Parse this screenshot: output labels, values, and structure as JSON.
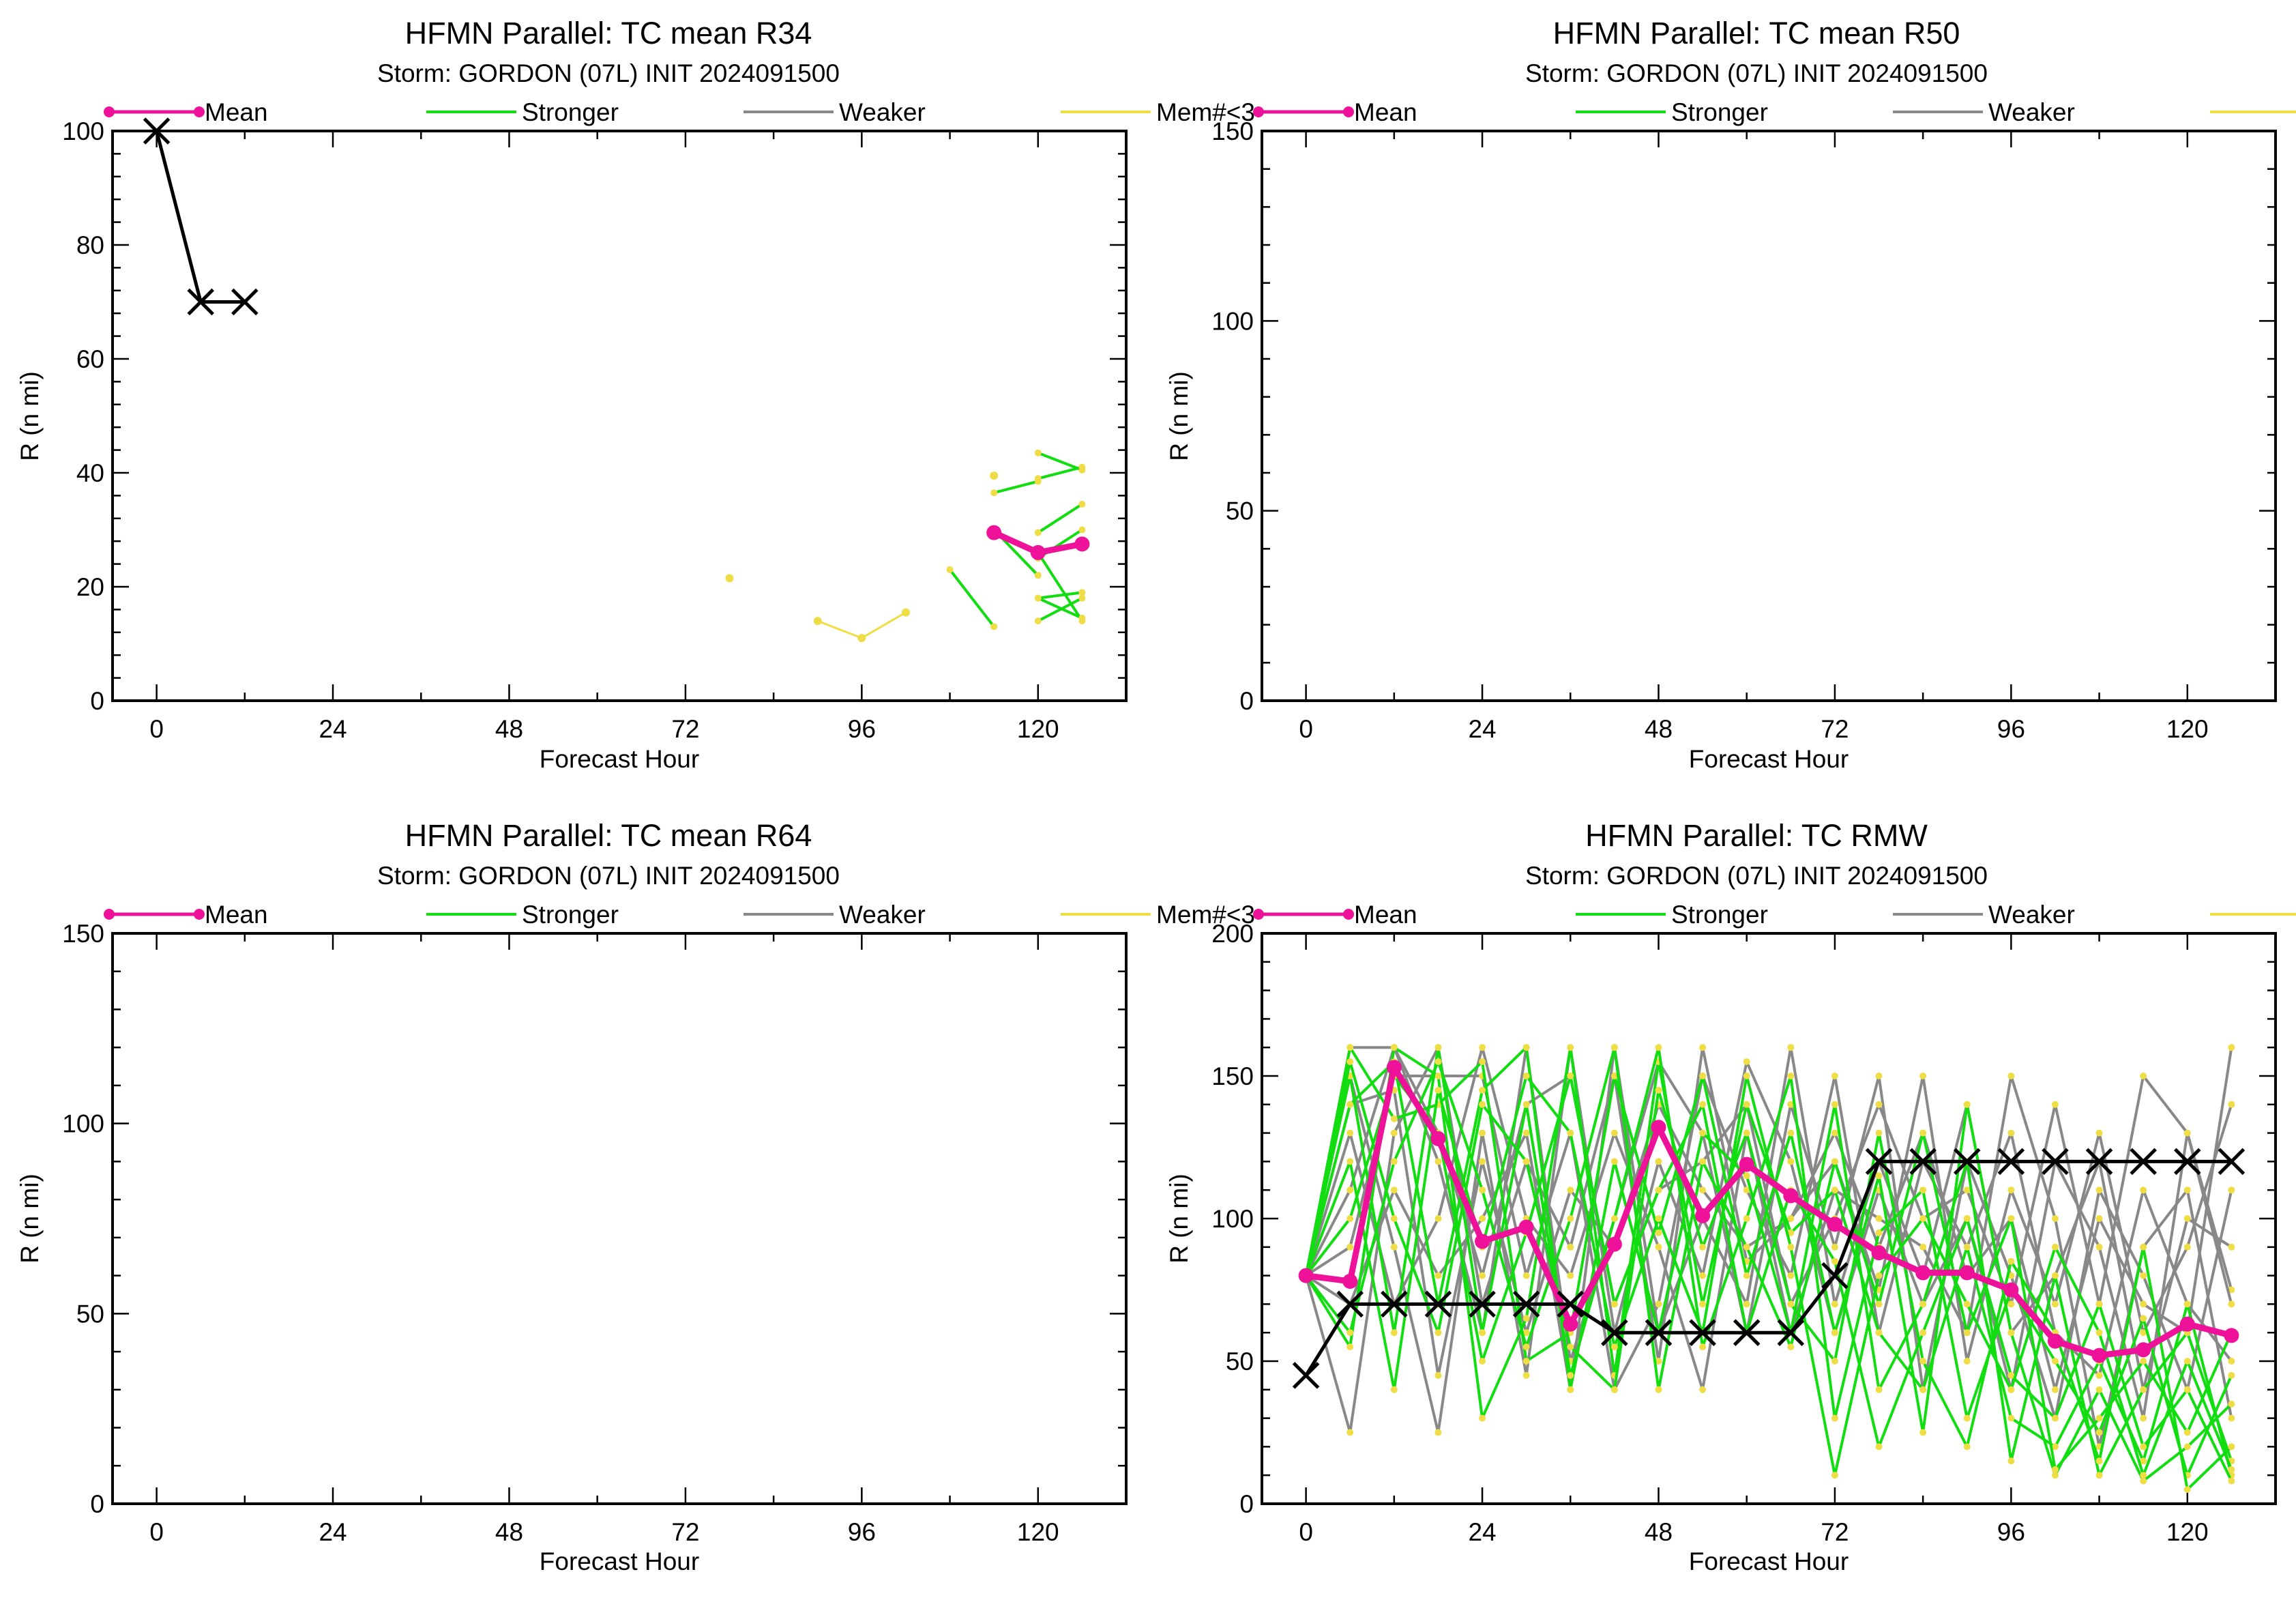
{
  "legend_items": [
    {
      "label": "Mean",
      "color": "#ee1199",
      "markers": true
    },
    {
      "label": "Stronger",
      "color": "#11dd11",
      "markers": false
    },
    {
      "label": "Weaker",
      "color": "#888888",
      "markers": false
    },
    {
      "label": "Mem#<3",
      "color": "#eedd44",
      "markers": false
    }
  ],
  "colors": {
    "mean": "#ee1199",
    "stronger": "#11dd11",
    "weaker": "#888888",
    "few_members": "#eedd44",
    "observed": "#000000"
  },
  "chart_data": [
    {
      "type": "line",
      "title": "HFMN Parallel: TC mean R34",
      "subtitle": "Storm: GORDON (07L) INIT 2024091500",
      "xlabel": "Forecast Hour",
      "ylabel": "R (n mi)",
      "xlim": [
        -6,
        132
      ],
      "ylim": [
        0,
        100
      ],
      "xticks": [
        0,
        24,
        48,
        72,
        96,
        120
      ],
      "yticks": [
        0,
        20,
        40,
        60,
        80,
        100
      ],
      "observed": {
        "x": [
          0,
          6,
          12
        ],
        "y": [
          100,
          70,
          70
        ]
      },
      "mean": {
        "x": [
          114,
          120,
          126
        ],
        "y": [
          29.5,
          26,
          27.5
        ]
      },
      "stronger": [
        {
          "x": [
            108,
            114
          ],
          "y": [
            23,
            13
          ]
        },
        {
          "x": [
            114,
            120
          ],
          "y": [
            36.5,
            38.5
          ]
        },
        {
          "x": [
            114,
            120
          ],
          "y": [
            30,
            22
          ]
        },
        {
          "x": [
            120,
            126
          ],
          "y": [
            43.5,
            40.5
          ]
        },
        {
          "x": [
            120,
            126
          ],
          "y": [
            39,
            41
          ]
        },
        {
          "x": [
            120,
            126
          ],
          "y": [
            29.5,
            34.5
          ]
        },
        {
          "x": [
            120,
            126
          ],
          "y": [
            25,
            30
          ]
        },
        {
          "x": [
            120,
            126
          ],
          "y": [
            18,
            19
          ]
        },
        {
          "x": [
            120,
            126
          ],
          "y": [
            14,
            18
          ]
        },
        {
          "x": [
            120,
            126
          ],
          "y": [
            26,
            14
          ]
        },
        {
          "x": [
            120,
            126
          ],
          "y": [
            18,
            14.5
          ]
        }
      ],
      "weaker": [],
      "few_members": [
        {
          "x": [
            78
          ],
          "y": [
            21.5
          ]
        },
        {
          "x": [
            90,
            96,
            102
          ],
          "y": [
            14,
            11,
            15.5
          ]
        },
        {
          "x": [
            114
          ],
          "y": [
            39.5
          ]
        }
      ]
    },
    {
      "type": "line",
      "title": "HFMN Parallel: TC mean R50",
      "subtitle": "Storm: GORDON (07L) INIT 2024091500",
      "xlabel": "Forecast Hour",
      "ylabel": "R (n mi)",
      "xlim": [
        -6,
        132
      ],
      "ylim": [
        0,
        150
      ],
      "xticks": [
        0,
        24,
        48,
        72,
        96,
        120
      ],
      "yticks": [
        0,
        50,
        100,
        150
      ],
      "observed": {
        "x": [],
        "y": []
      },
      "mean": {
        "x": [],
        "y": []
      },
      "stronger": [],
      "weaker": [],
      "few_members": []
    },
    {
      "type": "line",
      "title": "HFMN Parallel: TC mean R64",
      "subtitle": "Storm: GORDON (07L) INIT 2024091500",
      "xlabel": "Forecast Hour",
      "ylabel": "R (n mi)",
      "xlim": [
        -6,
        132
      ],
      "ylim": [
        0,
        150
      ],
      "xticks": [
        0,
        24,
        48,
        72,
        96,
        120
      ],
      "yticks": [
        0,
        50,
        100,
        150
      ],
      "observed": {
        "x": [],
        "y": []
      },
      "mean": {
        "x": [],
        "y": []
      },
      "stronger": [],
      "weaker": [],
      "few_members": []
    },
    {
      "type": "line",
      "title": "HFMN Parallel: TC RMW",
      "subtitle": "Storm: GORDON (07L) INIT 2024091500",
      "xlabel": "Forecast Hour",
      "ylabel": "R (n mi)",
      "xlim": [
        -6,
        132
      ],
      "ylim": [
        0,
        200
      ],
      "xticks": [
        0,
        24,
        48,
        72,
        96,
        120
      ],
      "yticks": [
        0,
        50,
        100,
        150,
        200
      ],
      "observed": {
        "x": [
          0,
          6,
          12,
          18,
          24,
          30,
          36,
          42,
          48,
          54,
          60,
          66,
          72,
          78,
          84,
          90,
          96,
          102,
          108,
          114,
          120,
          126
        ],
        "y": [
          45,
          70,
          70,
          70,
          70,
          70,
          70,
          60,
          60,
          60,
          60,
          60,
          80,
          120,
          120,
          120,
          120,
          120,
          120,
          120,
          120,
          120
        ]
      },
      "mean": {
        "x": [
          0,
          6,
          12,
          18,
          24,
          30,
          36,
          42,
          48,
          54,
          60,
          66,
          72,
          78,
          84,
          90,
          96,
          102,
          108,
          114,
          120,
          126
        ],
        "y": [
          80,
          78,
          153,
          128,
          92,
          97,
          63,
          91,
          132,
          101,
          119,
          108,
          98,
          88,
          81,
          81,
          75,
          57,
          52,
          54,
          63,
          59
        ]
      },
      "stronger": [
        {
          "x": [
            0,
            6,
            12,
            18,
            24,
            30,
            36,
            42,
            48,
            54,
            60,
            66,
            72,
            78,
            84,
            90,
            96,
            102,
            108,
            114,
            120,
            126
          ],
          "y": [
            80,
            55,
            160,
            150,
            30,
            65,
            160,
            45,
            155,
            70,
            140,
            95,
            110,
            60,
            40,
            90,
            30,
            20,
            50,
            15,
            70,
            10
          ]
        },
        {
          "x": [
            0,
            6,
            12,
            18,
            24,
            30,
            36,
            42,
            48,
            54,
            60,
            66,
            72,
            78,
            84,
            90,
            96,
            102,
            108,
            114,
            120,
            126
          ],
          "y": [
            80,
            160,
            135,
            140,
            155,
            50,
            60,
            150,
            95,
            150,
            80,
            130,
            60,
            115,
            25,
            140,
            60,
            10,
            40,
            8,
            20,
            35
          ]
        },
        {
          "x": [
            0,
            6,
            12,
            18,
            24,
            30,
            36,
            42,
            48,
            54,
            60,
            66,
            72,
            78,
            84,
            90,
            96,
            102,
            108,
            114,
            120,
            126
          ],
          "y": [
            80,
            140,
            155,
            70,
            145,
            160,
            40,
            120,
            60,
            130,
            115,
            60,
            140,
            40,
            70,
            120,
            15,
            80,
            10,
            40,
            60,
            15
          ]
        },
        {
          "x": [
            0,
            6,
            12,
            18,
            24,
            30,
            36,
            42,
            48,
            54,
            60,
            66,
            72,
            78,
            84,
            90,
            96,
            102,
            108,
            114,
            120,
            126
          ],
          "y": [
            80,
            150,
            60,
            160,
            60,
            140,
            45,
            100,
            160,
            55,
            100,
            150,
            30,
            95,
            110,
            30,
            75,
            50,
            25,
            65,
            10,
            45
          ]
        },
        {
          "x": [
            0,
            6,
            12,
            18,
            24,
            30,
            36,
            42,
            48,
            54,
            60,
            66,
            72,
            78,
            84,
            90,
            96,
            102,
            108,
            114,
            120,
            126
          ],
          "y": [
            80,
            100,
            150,
            130,
            50,
            95,
            150,
            70,
            110,
            140,
            60,
            110,
            85,
            20,
            60,
            100,
            45,
            30,
            70,
            20,
            40,
            8
          ]
        },
        {
          "x": [
            0,
            6,
            12,
            18,
            24,
            30,
            36,
            42,
            48,
            54,
            60,
            66,
            72,
            78,
            84,
            90,
            96,
            102,
            108,
            114,
            120,
            126
          ],
          "y": [
            80,
            60,
            120,
            155,
            110,
            55,
            100,
            160,
            40,
            120,
            90,
            55,
            120,
            70,
            130,
            60,
            100,
            12,
            30,
            50,
            25,
            60
          ]
        },
        {
          "x": [
            0,
            6,
            12,
            18,
            24,
            30,
            36,
            42,
            48,
            54,
            60,
            66,
            72,
            78,
            84,
            90,
            96,
            102,
            108,
            114,
            120,
            126
          ],
          "y": [
            80,
            155,
            100,
            60,
            140,
            120,
            55,
            40,
            145,
            90,
            130,
            70,
            50,
            130,
            50,
            20,
            85,
            60,
            15,
            90,
            5,
            20
          ]
        },
        {
          "x": [
            0,
            6,
            12,
            18,
            24,
            30,
            36,
            42,
            48,
            54,
            60,
            66,
            72,
            78,
            84,
            90,
            96,
            102,
            108,
            114,
            120,
            126
          ],
          "y": [
            80,
            120,
            40,
            145,
            90,
            150,
            130,
            55,
            100,
            60,
            150,
            90,
            10,
            80,
            100,
            70,
            40,
            90,
            60,
            10,
            50,
            12
          ]
        }
      ],
      "weaker": [
        {
          "x": [
            0,
            6,
            12,
            18,
            24,
            30,
            36,
            42,
            48,
            54,
            60,
            66,
            72,
            78,
            84,
            90,
            96,
            102,
            108,
            114,
            120,
            126
          ],
          "y": [
            80,
            25,
            130,
            160,
            70,
            120,
            90,
            150,
            50,
            160,
            85,
            100,
            120,
            75,
            150,
            50,
            110,
            70,
            130,
            60,
            90,
            140
          ]
        },
        {
          "x": [
            0,
            6,
            12,
            18,
            24,
            30,
            36,
            42,
            48,
            54,
            60,
            66,
            72,
            78,
            84,
            90,
            96,
            102,
            108,
            114,
            120,
            126
          ],
          "y": [
            80,
            150,
            90,
            25,
            130,
            45,
            160,
            60,
            120,
            80,
            155,
            120,
            60,
            110,
            70,
            100,
            40,
            120,
            90,
            30,
            130,
            75
          ]
        },
        {
          "x": [
            0,
            6,
            12,
            18,
            24,
            30,
            36,
            42,
            48,
            54,
            60,
            66,
            72,
            78,
            84,
            90,
            96,
            102,
            108,
            114,
            120,
            126
          ],
          "y": [
            80,
            160,
            160,
            120,
            60,
            160,
            50,
            100,
            155,
            130,
            60,
            140,
            90,
            150,
            40,
            120,
            80,
            30,
            110,
            80,
            40,
            110
          ]
        },
        {
          "x": [
            0,
            6,
            12,
            18,
            24,
            30,
            36,
            42,
            48,
            54,
            60,
            66,
            72,
            78,
            84,
            90,
            96,
            102,
            108,
            114,
            120,
            126
          ],
          "y": [
            80,
            90,
            150,
            150,
            150,
            80,
            130,
            40,
            70,
            150,
            110,
            80,
            150,
            60,
            120,
            90,
            130,
            60,
            45,
            110,
            70,
            50
          ]
        },
        {
          "x": [
            0,
            6,
            12,
            18,
            24,
            30,
            36,
            42,
            48,
            54,
            60,
            66,
            72,
            78,
            84,
            90,
            96,
            102,
            108,
            114,
            120,
            126
          ],
          "y": [
            80,
            130,
            70,
            100,
            160,
            100,
            80,
            130,
            90,
            40,
            130,
            60,
            110,
            100,
            90,
            60,
            150,
            100,
            20,
            90,
            110,
            30
          ]
        },
        {
          "x": [
            0,
            6,
            12,
            18,
            24,
            30,
            36,
            42,
            48,
            54,
            60,
            66,
            72,
            78,
            84,
            90,
            96,
            102,
            108,
            114,
            120,
            126
          ],
          "y": [
            80,
            70,
            110,
            80,
            100,
            130,
            40,
            160,
            60,
            100,
            70,
            160,
            70,
            120,
            80,
            140,
            60,
            80,
            120,
            40,
            100,
            90
          ]
        },
        {
          "x": [
            0,
            6,
            12,
            18,
            24,
            30,
            36,
            42,
            48,
            54,
            60,
            66,
            72,
            78,
            84,
            90,
            96,
            102,
            108,
            114,
            120,
            126
          ],
          "y": [
            80,
            140,
            145,
            45,
            120,
            60,
            110,
            90,
            140,
            110,
            90,
            100,
            130,
            90,
            130,
            80,
            100,
            40,
            100,
            70,
            60,
            160
          ]
        },
        {
          "x": [
            0,
            6,
            12,
            18,
            24,
            30,
            36,
            42,
            48,
            54,
            60,
            66,
            72,
            78,
            84,
            90,
            96,
            102,
            108,
            114,
            120,
            126
          ],
          "y": [
            80,
            110,
            160,
            130,
            80,
            140,
            150,
            70,
            110,
            120,
            140,
            70,
            100,
            140,
            100,
            110,
            70,
            140,
            70,
            150,
            130,
            70
          ]
        }
      ],
      "few_members": []
    }
  ]
}
